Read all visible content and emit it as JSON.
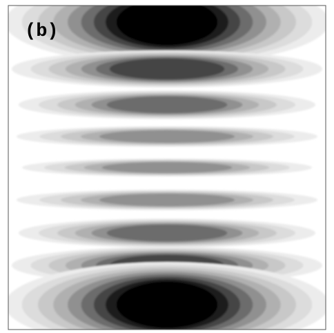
{
  "panel": {
    "label": "(b)"
  }
}
